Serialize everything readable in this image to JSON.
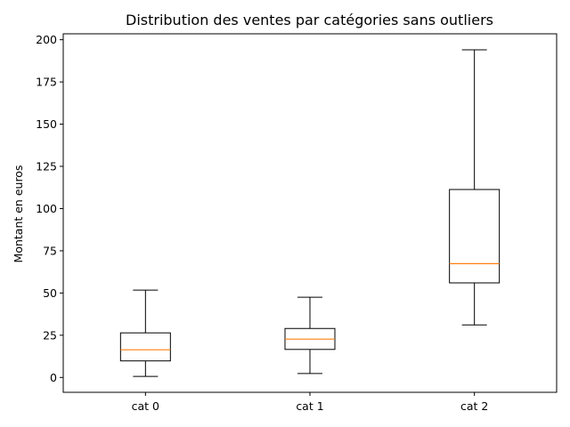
{
  "chart_data": {
    "type": "boxplot",
    "title": "Distribution des ventes par catégories sans outliers",
    "xlabel": "",
    "ylabel": "Montant en euros",
    "categories": [
      "cat 0",
      "cat 1",
      "cat 2"
    ],
    "boxes": [
      {
        "category": "cat 0",
        "whisker_low": 0.6,
        "q1": 9.8,
        "median": 16.4,
        "q3": 26.4,
        "whisker_high": 51.7
      },
      {
        "category": "cat 1",
        "whisker_low": 2.3,
        "q1": 16.6,
        "median": 22.7,
        "q3": 29.0,
        "whisker_high": 47.5
      },
      {
        "category": "cat 2",
        "whisker_low": 31.1,
        "q1": 56.0,
        "median": 67.4,
        "q3": 111.3,
        "whisker_high": 194.0
      }
    ],
    "yticks": [
      0,
      25,
      50,
      75,
      100,
      125,
      150,
      175,
      200
    ],
    "ylim": [
      -8.8,
      203.5
    ],
    "grid": false,
    "colors": {
      "box": "#000000",
      "median": "#ff7f0e",
      "background": "#ffffff"
    }
  }
}
